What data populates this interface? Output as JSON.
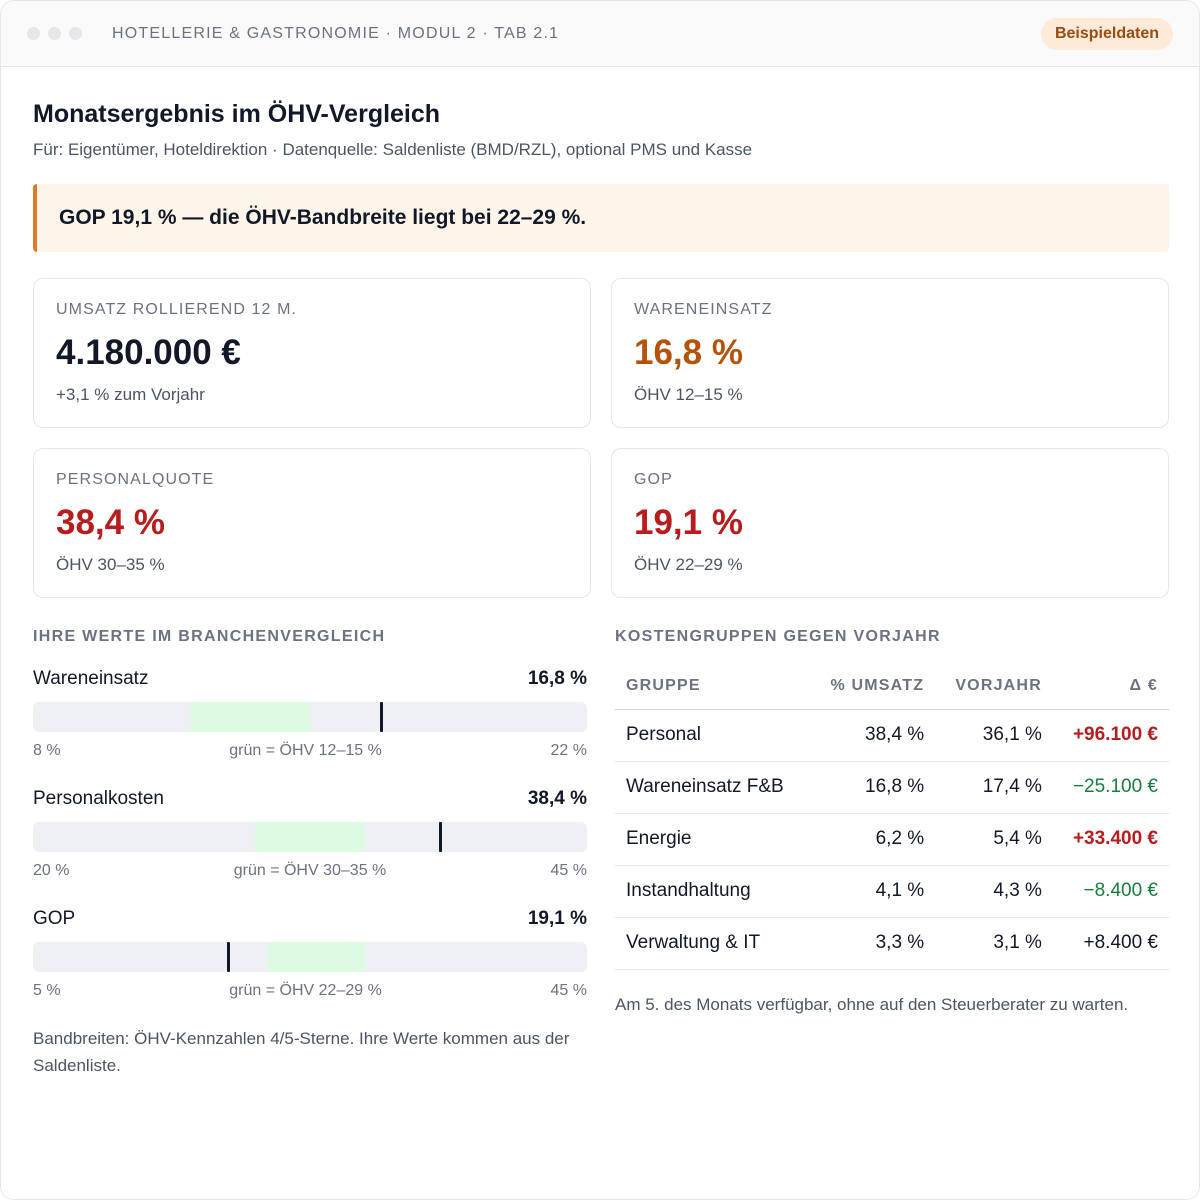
{
  "window": {
    "breadcrumb": "HOTELLERIE & GASTRONOMIE · MODUL 2 · TAB 2.1",
    "badge": "Beispieldaten"
  },
  "header": {
    "title": "Monatsergebnis im ÖHV-Vergleich",
    "subtitle": "Für: Eigentümer, Hoteldirektion · Datenquelle: Saldenliste (BMD/RZL), optional PMS und Kasse"
  },
  "callout": {
    "text": "GOP 19,1 % — die ÖHV-Bandbreite liegt bei 22–29 %."
  },
  "kpis": [
    {
      "label": "UMSATZ ROLLIEREND 12 M.",
      "value": "4.180.000 €",
      "sub": "+3,1 % zum Vorjahr",
      "color": "#111827"
    },
    {
      "label": "WARENEINSATZ",
      "value": "16,8 %",
      "sub": "ÖHV 12–15 %",
      "color": "#b45309"
    },
    {
      "label": "PERSONALQUOTE",
      "value": "38,4 %",
      "sub": "ÖHV 30–35 %",
      "color": "#b91c1c"
    },
    {
      "label": "GOP",
      "value": "19,1 %",
      "sub": "ÖHV 22–29 %",
      "color": "#b91c1c"
    }
  ],
  "benchmark": {
    "heading": "IHRE WERTE IM BRANCHENVERGLEICH",
    "metrics": [
      {
        "name": "Wareneinsatz",
        "value_label": "16,8 %",
        "value": 16.8,
        "min": 8,
        "max": 22,
        "band_low": 12,
        "band_high": 15,
        "min_label": "8 %",
        "max_label": "22 %",
        "band_label": "grün = ÖHV 12–15 %"
      },
      {
        "name": "Personalkosten",
        "value_label": "38,4 %",
        "value": 38.4,
        "min": 20,
        "max": 45,
        "band_low": 30,
        "band_high": 35,
        "min_label": "20 %",
        "max_label": "45 %",
        "band_label": "grün = ÖHV 30–35 %"
      },
      {
        "name": "GOP",
        "value_label": "19,1 %",
        "value": 19.1,
        "min": 5,
        "max": 45,
        "band_low": 22,
        "band_high": 29,
        "min_label": "5 %",
        "max_label": "45 %",
        "band_label": "grün = ÖHV 22–29 %"
      }
    ],
    "note": "Bandbreiten: ÖHV-Kennzahlen 4/5-Sterne. Ihre Werte kommen aus der Saldenliste."
  },
  "costs": {
    "heading": "KOSTENGRUPPEN GEGEN VORJAHR",
    "columns": [
      "GRUPPE",
      "% UMSATZ",
      "VORJAHR",
      "Δ €"
    ],
    "rows": [
      {
        "group": "Personal",
        "share": "38,4 %",
        "prev": "36,1 %",
        "delta": "+96.100 €",
        "tone": "neg"
      },
      {
        "group": "Wareneinsatz F&B",
        "share": "16,8 %",
        "prev": "17,4 %",
        "delta": "−25.100 €",
        "tone": "pos"
      },
      {
        "group": "Energie",
        "share": "6,2 %",
        "prev": "5,4 %",
        "delta": "+33.400 €",
        "tone": "neg"
      },
      {
        "group": "Instandhaltung",
        "share": "4,1 %",
        "prev": "4,3 %",
        "delta": "−8.400 €",
        "tone": "pos"
      },
      {
        "group": "Verwaltung & IT",
        "share": "3,3 %",
        "prev": "3,1 %",
        "delta": "+8.400 €",
        "tone": "plain"
      }
    ],
    "note": "Am 5. des Monats verfügbar, ohne auf den Steuerberater zu warten."
  }
}
